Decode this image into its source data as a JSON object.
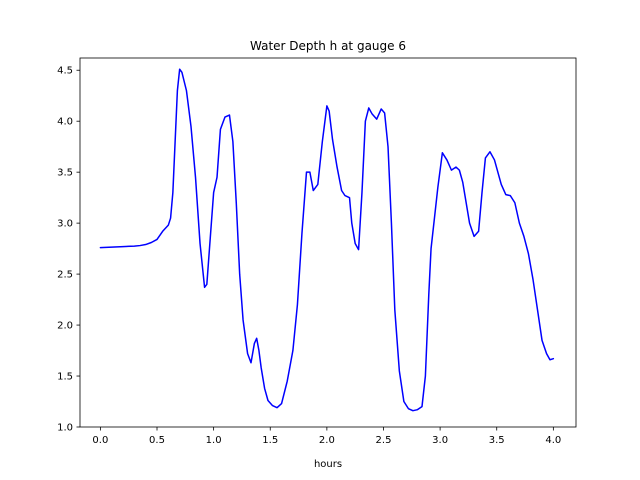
{
  "chart_data": {
    "type": "line",
    "title": "Water Depth h at gauge 6",
    "xlabel": "hours",
    "ylabel": "",
    "xlim": [
      -0.18,
      4.2
    ],
    "ylim": [
      1.0,
      4.62
    ],
    "xticks": [
      0.0,
      0.5,
      1.0,
      1.5,
      2.0,
      2.5,
      3.0,
      3.5,
      4.0
    ],
    "yticks": [
      1.0,
      1.5,
      2.0,
      2.5,
      3.0,
      3.5,
      4.0,
      4.5
    ],
    "xtick_labels": [
      "0.0",
      "0.5",
      "1.0",
      "1.5",
      "2.0",
      "2.5",
      "3.0",
      "3.5",
      "4.0"
    ],
    "ytick_labels": [
      "1.0",
      "1.5",
      "2.0",
      "2.5",
      "3.0",
      "3.5",
      "4.0",
      "4.5"
    ],
    "grid": false,
    "legend": "none",
    "series": [
      {
        "color": "#0000ff",
        "x": [
          0.0,
          0.1,
          0.2,
          0.3,
          0.35,
          0.4,
          0.45,
          0.5,
          0.55,
          0.6,
          0.62,
          0.64,
          0.66,
          0.68,
          0.7,
          0.72,
          0.76,
          0.8,
          0.84,
          0.88,
          0.92,
          0.94,
          0.97,
          1.0,
          1.03,
          1.06,
          1.1,
          1.14,
          1.17,
          1.2,
          1.23,
          1.26,
          1.3,
          1.33,
          1.36,
          1.38,
          1.4,
          1.42,
          1.45,
          1.48,
          1.52,
          1.56,
          1.6,
          1.65,
          1.7,
          1.74,
          1.78,
          1.82,
          1.85,
          1.88,
          1.92,
          1.96,
          2.0,
          2.02,
          2.05,
          2.09,
          2.13,
          2.16,
          2.2,
          2.22,
          2.25,
          2.28,
          2.31,
          2.34,
          2.37,
          2.4,
          2.44,
          2.48,
          2.51,
          2.54,
          2.57,
          2.6,
          2.64,
          2.68,
          2.72,
          2.76,
          2.8,
          2.84,
          2.87,
          2.9,
          2.92,
          2.95,
          2.98,
          3.02,
          3.06,
          3.1,
          3.14,
          3.17,
          3.2,
          3.23,
          3.26,
          3.3,
          3.34,
          3.37,
          3.4,
          3.44,
          3.48,
          3.51,
          3.54,
          3.58,
          3.62,
          3.66,
          3.7,
          3.74,
          3.78,
          3.82,
          3.86,
          3.9,
          3.94,
          3.97,
          4.0
        ],
        "y": [
          2.76,
          2.765,
          2.77,
          2.775,
          2.78,
          2.79,
          2.81,
          2.84,
          2.92,
          2.98,
          3.05,
          3.3,
          3.8,
          4.3,
          4.51,
          4.48,
          4.3,
          3.95,
          3.45,
          2.8,
          2.37,
          2.4,
          2.85,
          3.3,
          3.45,
          3.92,
          4.04,
          4.06,
          3.8,
          3.2,
          2.5,
          2.05,
          1.72,
          1.63,
          1.82,
          1.87,
          1.75,
          1.58,
          1.38,
          1.26,
          1.21,
          1.19,
          1.23,
          1.45,
          1.75,
          2.2,
          2.9,
          3.5,
          3.5,
          3.32,
          3.38,
          3.8,
          4.15,
          4.1,
          3.82,
          3.55,
          3.32,
          3.27,
          3.25,
          3.0,
          2.8,
          2.74,
          3.3,
          4.0,
          4.13,
          4.07,
          4.02,
          4.12,
          4.08,
          3.75,
          3.0,
          2.15,
          1.55,
          1.25,
          1.18,
          1.16,
          1.17,
          1.2,
          1.5,
          2.3,
          2.75,
          3.05,
          3.35,
          3.69,
          3.62,
          3.52,
          3.55,
          3.52,
          3.4,
          3.2,
          3.0,
          2.87,
          2.92,
          3.3,
          3.64,
          3.7,
          3.62,
          3.5,
          3.38,
          3.28,
          3.27,
          3.2,
          3.0,
          2.87,
          2.7,
          2.45,
          2.15,
          1.85,
          1.72,
          1.66,
          1.67
        ]
      }
    ]
  }
}
